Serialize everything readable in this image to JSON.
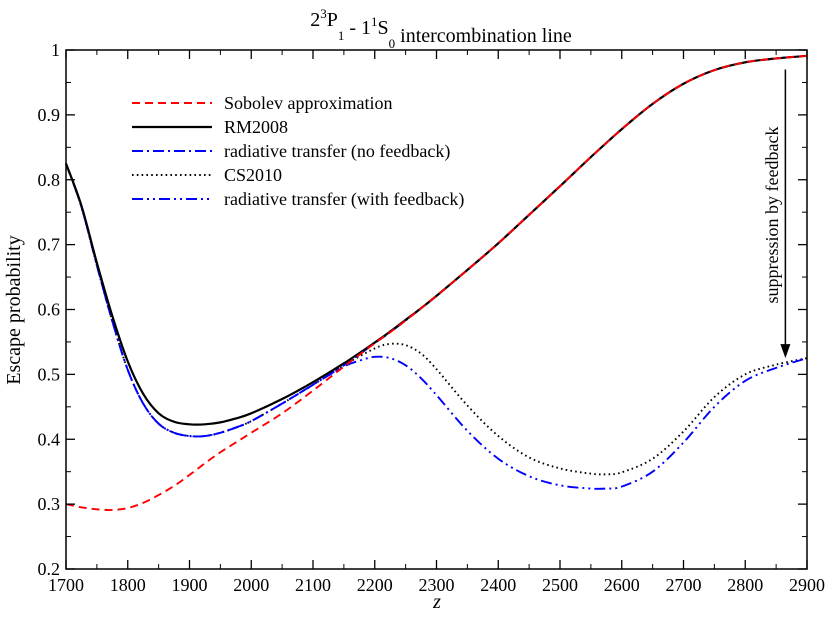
{
  "chart_data": {
    "type": "line",
    "title": {
      "parts": [
        {
          "t": "2",
          "s": "n"
        },
        {
          "t": "3",
          "s": "sup"
        },
        {
          "t": "P",
          "s": "n"
        },
        {
          "t": "1",
          "s": "sub"
        },
        {
          "t": " - 1",
          "s": "n"
        },
        {
          "t": "1",
          "s": "sup"
        },
        {
          "t": "S",
          "s": "n"
        },
        {
          "t": "0",
          "s": "sub"
        },
        {
          "t": " intercombination line",
          "s": "n"
        }
      ]
    },
    "xlabel": "z",
    "ylabel": "Escape probability",
    "xlim": [
      1700,
      2900
    ],
    "ylim": [
      0.2,
      1.0
    ],
    "xticks": [
      1700,
      1800,
      1900,
      2000,
      2100,
      2200,
      2300,
      2400,
      2500,
      2600,
      2700,
      2800,
      2900
    ],
    "xtick_labels": [
      "1700",
      "1800",
      "1900",
      "2000",
      "2100",
      "2200",
      "2300",
      "2400",
      "2500",
      "2600",
      "2700",
      "2800",
      "2900"
    ],
    "yticks": [
      0.2,
      0.3,
      0.4,
      0.5,
      0.6,
      0.7,
      0.8,
      0.9,
      1.0
    ],
    "ytick_labels": [
      "0.2",
      "0.3",
      "0.4",
      "0.5",
      "0.6",
      "0.7",
      "0.8",
      "0.9",
      "1"
    ],
    "grid": false,
    "legend_position": "upper-left",
    "annotation": {
      "text": "suppression by feedback",
      "arrow_x": 2865,
      "arrow_from_y": 0.97,
      "arrow_to_y": 0.525
    },
    "series": [
      {
        "name": "Sobolev approximation",
        "color": "#ff0000",
        "dash": "dashed",
        "x": [
          1700,
          1725,
          1750,
          1775,
          1800,
          1825,
          1850,
          1875,
          1900,
          1925,
          1950,
          1975,
          2000,
          2050,
          2100,
          2150,
          2200,
          2225,
          2250,
          2275,
          2300,
          2350,
          2400,
          2450,
          2500,
          2550,
          2600,
          2650,
          2700,
          2750,
          2800,
          2850,
          2900
        ],
        "y": [
          0.3,
          0.295,
          0.292,
          0.291,
          0.294,
          0.302,
          0.314,
          0.328,
          0.345,
          0.363,
          0.38,
          0.395,
          0.41,
          0.44,
          0.475,
          0.512,
          0.548,
          0.565,
          0.583,
          0.602,
          0.621,
          0.661,
          0.702,
          0.746,
          0.79,
          0.835,
          0.878,
          0.917,
          0.948,
          0.969,
          0.981,
          0.987,
          0.991
        ]
      },
      {
        "name": "RM2008",
        "color": "#000000",
        "dash": "solid",
        "x": [
          1700,
          1725,
          1750,
          1775,
          1800,
          1825,
          1850,
          1875,
          1900,
          1925,
          1950,
          1975,
          2000,
          2050,
          2100,
          2150,
          2200,
          2225,
          2250,
          2275,
          2300,
          2350,
          2400,
          2450,
          2500,
          2550,
          2600,
          2650,
          2700,
          2750,
          2800,
          2850,
          2900
        ],
        "y": [
          0.825,
          0.76,
          0.672,
          0.59,
          0.52,
          0.47,
          0.44,
          0.427,
          0.423,
          0.423,
          0.426,
          0.432,
          0.44,
          0.462,
          0.488,
          0.517,
          0.549,
          0.566,
          0.584,
          0.602,
          0.621,
          0.661,
          0.702,
          0.746,
          0.79,
          0.835,
          0.878,
          0.917,
          0.948,
          0.969,
          0.981,
          0.987,
          0.991
        ]
      },
      {
        "name": "radiative transfer (no feedback)",
        "color": "#0000ff",
        "dash": "dashdot",
        "x": [
          1700,
          1725,
          1750,
          1775,
          1800,
          1825,
          1850,
          1875,
          1900,
          1925,
          1950,
          1975,
          2000,
          2050,
          2100,
          2150,
          2200,
          2225,
          2250,
          2275,
          2300,
          2350,
          2400,
          2450,
          2500,
          2550,
          2600,
          2650,
          2700,
          2750,
          2800,
          2850,
          2900
        ],
        "y": [
          0.825,
          0.758,
          0.668,
          0.582,
          0.507,
          0.455,
          0.424,
          0.41,
          0.405,
          0.405,
          0.41,
          0.418,
          0.428,
          0.455,
          0.484,
          0.514,
          0.548,
          0.565,
          0.583,
          0.602,
          0.621,
          0.661,
          0.702,
          0.746,
          0.79,
          0.835,
          0.878,
          0.917,
          0.948,
          0.969,
          0.981,
          0.987,
          0.991
        ]
      },
      {
        "name": "CS2010",
        "color": "#000000",
        "dash": "dotted",
        "x": [
          1700,
          1725,
          1750,
          1775,
          1800,
          1825,
          1850,
          1875,
          1900,
          1925,
          1950,
          1975,
          2000,
          2050,
          2100,
          2150,
          2200,
          2225,
          2250,
          2275,
          2300,
          2350,
          2400,
          2450,
          2500,
          2550,
          2575,
          2600,
          2650,
          2700,
          2750,
          2800,
          2850,
          2900
        ],
        "y": [
          0.825,
          0.758,
          0.668,
          0.582,
          0.507,
          0.455,
          0.424,
          0.41,
          0.405,
          0.405,
          0.41,
          0.418,
          0.428,
          0.455,
          0.484,
          0.514,
          0.54,
          0.547,
          0.545,
          0.532,
          0.508,
          0.452,
          0.405,
          0.372,
          0.355,
          0.347,
          0.346,
          0.349,
          0.37,
          0.412,
          0.465,
          0.5,
          0.515,
          0.525
        ]
      },
      {
        "name": "radiative transfer (with feedback)",
        "color": "#0000ff",
        "dash": "dashdotdot",
        "x": [
          1700,
          1725,
          1750,
          1775,
          1800,
          1825,
          1850,
          1875,
          1900,
          1925,
          1950,
          1975,
          2000,
          2050,
          2100,
          2150,
          2175,
          2200,
          2225,
          2250,
          2275,
          2300,
          2350,
          2400,
          2450,
          2500,
          2550,
          2575,
          2600,
          2650,
          2700,
          2750,
          2800,
          2850,
          2900
        ],
        "y": [
          0.825,
          0.758,
          0.668,
          0.582,
          0.507,
          0.455,
          0.424,
          0.41,
          0.405,
          0.405,
          0.41,
          0.418,
          0.428,
          0.455,
          0.484,
          0.512,
          0.521,
          0.527,
          0.525,
          0.514,
          0.494,
          0.468,
          0.413,
          0.37,
          0.343,
          0.329,
          0.324,
          0.324,
          0.327,
          0.35,
          0.395,
          0.45,
          0.49,
          0.51,
          0.525
        ]
      }
    ]
  }
}
